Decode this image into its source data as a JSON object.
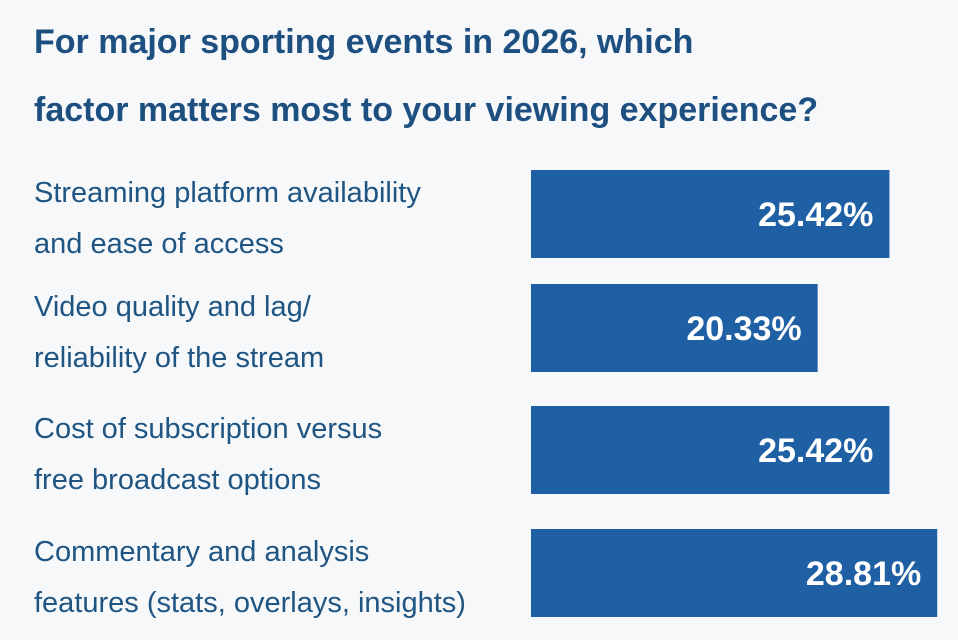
{
  "chart_data": {
    "type": "bar",
    "orientation": "horizontal",
    "title_lines": [
      "For major sporting events in 2026, which",
      "factor matters most to your viewing experience?"
    ],
    "categories": [
      [
        "Streaming platform availability",
        "and ease of access"
      ],
      [
        "Video quality and lag/",
        "reliability of the stream"
      ],
      [
        "Cost of subscription versus",
        "free broadcast options"
      ],
      [
        "Commentary and analysis",
        "features (stats, overlays, insights)"
      ]
    ],
    "values": [
      25.42,
      20.33,
      25.42,
      28.81
    ],
    "value_labels": [
      "25.42%",
      "20.33%",
      "25.42%",
      "28.81%"
    ],
    "unit": "%",
    "xlim": [
      0,
      30
    ],
    "bar_color": "#1f5fa3",
    "label_color": "#1f5583",
    "title_color": "#1d4f80"
  }
}
